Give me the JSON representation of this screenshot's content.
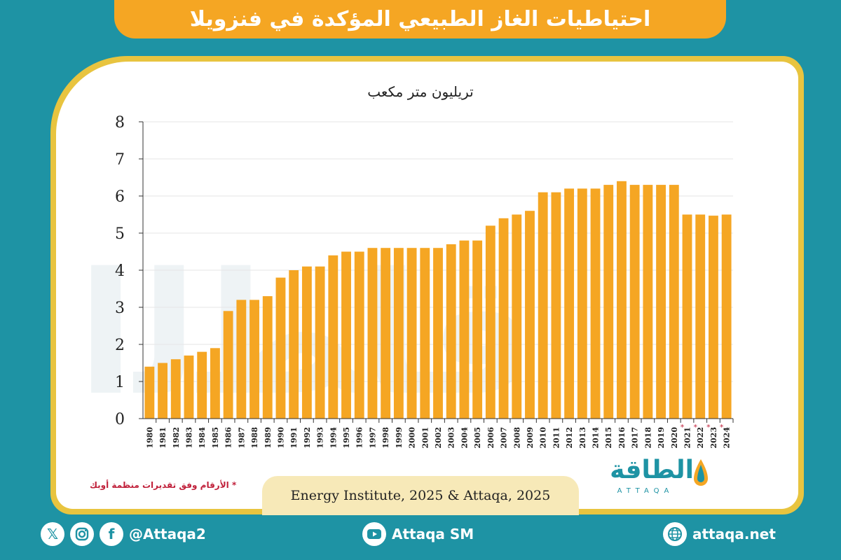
{
  "header": {
    "title": "احتياطيات الغاز الطبيعي المؤكدة في فنزويلا"
  },
  "chart_data": {
    "type": "bar",
    "title": "",
    "ylabel": "تريليون متر مكعب",
    "xlabel": "",
    "ylim": [
      0,
      8
    ],
    "yticks": [
      "0",
      "1",
      "2",
      "3",
      "4",
      "5",
      "6",
      "7",
      "8"
    ],
    "categories": [
      "1980",
      "1981",
      "1982",
      "1983",
      "1984",
      "1985",
      "1986",
      "1987",
      "1988",
      "1989",
      "1990",
      "1991",
      "1992",
      "1993",
      "1994",
      "1995",
      "1996",
      "1997",
      "1998",
      "1999",
      "2000",
      "2001",
      "2002",
      "2003",
      "2004",
      "2005",
      "2006",
      "2007",
      "2008",
      "2009",
      "2010",
      "2011",
      "2012",
      "2013",
      "2014",
      "2015",
      "2016",
      "2017",
      "2018",
      "2019",
      "2020",
      "2021",
      "2022",
      "2023",
      "2024"
    ],
    "values": [
      1.4,
      1.5,
      1.6,
      1.7,
      1.8,
      1.9,
      2.9,
      3.2,
      3.2,
      3.3,
      3.8,
      4.0,
      4.1,
      4.1,
      4.4,
      4.5,
      4.5,
      4.6,
      4.6,
      4.6,
      4.6,
      4.6,
      4.6,
      4.7,
      4.8,
      4.8,
      5.2,
      5.4,
      5.5,
      5.6,
      6.1,
      6.1,
      6.2,
      6.2,
      6.2,
      6.3,
      6.4,
      6.3,
      6.3,
      6.3,
      6.3,
      5.5,
      5.5,
      5.47,
      5.5
    ],
    "estimated_marker": "*",
    "estimated_years": [
      "2021",
      "2022",
      "2023",
      "2024"
    ],
    "bar_color": "#f5a623",
    "grid": true,
    "legend": "none"
  },
  "footer": {
    "source": "Energy Institute, 2025 & Attaqa, 2025",
    "note": "* الأرقام وفق تقديرات منظمة أوبك",
    "logo_text": "الطاقة",
    "logo_sub": "ATTAQA",
    "social_handle": "@Attaqa2",
    "youtube": "Attaqa SM",
    "website": "attaqa.net"
  },
  "colors": {
    "background": "#1e93a4",
    "accent": "#f5a623",
    "border": "#e8c43f",
    "note": "#c0203a"
  },
  "icons": [
    "x-icon",
    "instagram-icon",
    "facebook-icon",
    "youtube-icon",
    "globe-icon"
  ]
}
